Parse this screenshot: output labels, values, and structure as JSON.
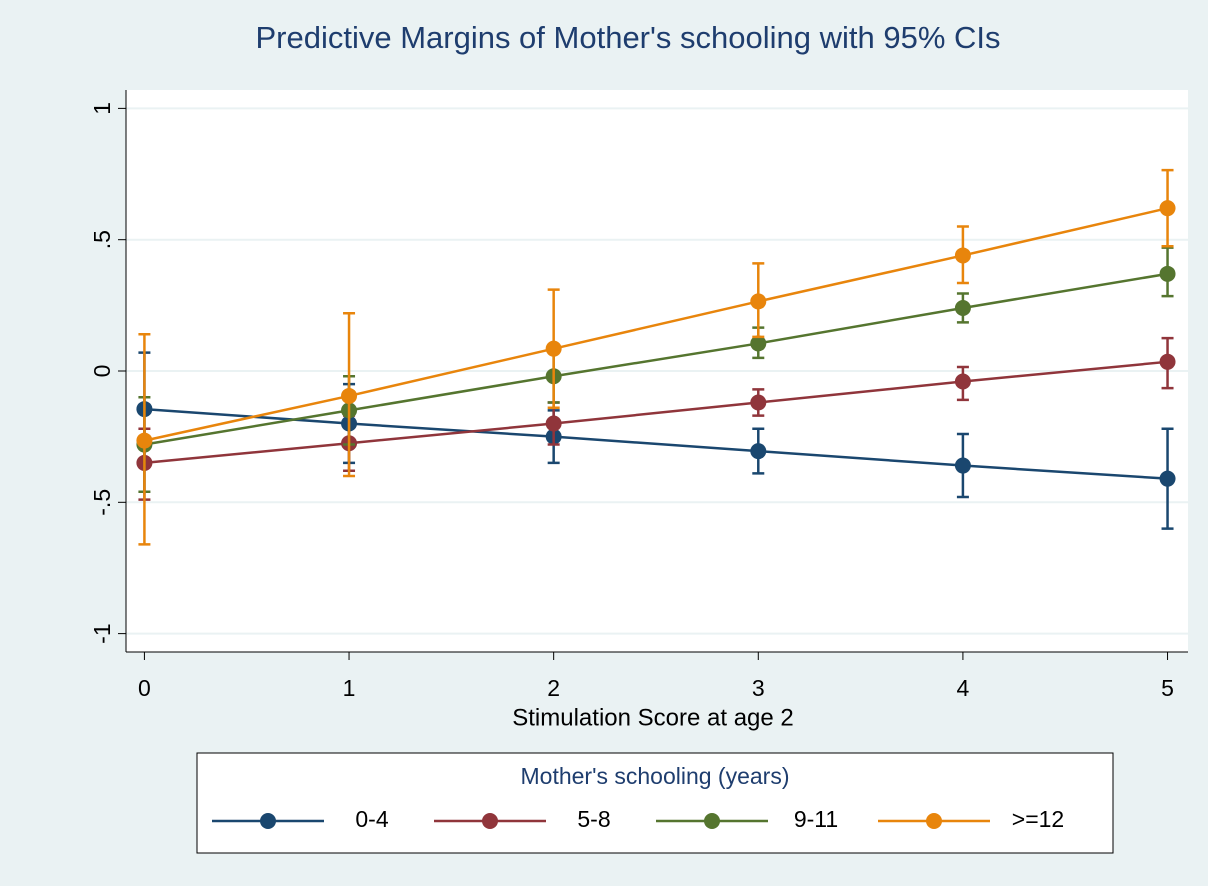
{
  "chart_data": {
    "type": "line",
    "title": "Predictive Margins of Mother's schooling with 95% CIs",
    "x_label": "Stimulation Score at age 2",
    "legend_title": "Mother's schooling (years)",
    "x": [
      0,
      1,
      2,
      3,
      4,
      5
    ],
    "xlim": [
      -0.09,
      5.1
    ],
    "xticks": [
      0,
      1,
      2,
      3,
      4,
      5
    ],
    "ylim": [
      -1.07,
      1.07
    ],
    "yticks": [
      {
        "value": -1,
        "label": "-1"
      },
      {
        "value": -0.5,
        "label": "-.5"
      },
      0,
      {
        "value": 0.5,
        "label": ".5"
      },
      1
    ],
    "grid": true,
    "series": [
      {
        "name": "0-4",
        "color": "#1a476f",
        "values": [
          -0.145,
          -0.2,
          -0.25,
          -0.305,
          -0.36,
          -0.41
        ],
        "lower": [
          -0.36,
          -0.35,
          -0.35,
          -0.39,
          -0.48,
          -0.6
        ],
        "upper": [
          0.07,
          -0.05,
          -0.15,
          -0.22,
          -0.24,
          -0.22
        ]
      },
      {
        "name": "5-8",
        "color": "#90353b",
        "values": [
          -0.35,
          -0.275,
          -0.2,
          -0.12,
          -0.04,
          0.035
        ],
        "lower": [
          -0.49,
          -0.38,
          -0.28,
          -0.17,
          -0.11,
          -0.065
        ],
        "upper": [
          -0.22,
          -0.17,
          -0.12,
          -0.07,
          0.015,
          0.125
        ]
      },
      {
        "name": "9-11",
        "color": "#55752f",
        "values": [
          -0.28,
          -0.15,
          -0.02,
          0.105,
          0.24,
          0.37
        ],
        "lower": [
          -0.46,
          -0.28,
          -0.12,
          0.05,
          0.185,
          0.285
        ],
        "upper": [
          -0.1,
          -0.02,
          0.08,
          0.165,
          0.295,
          0.47
        ]
      },
      {
        "name": ">=12",
        "color": "#e8850c",
        "values": [
          -0.265,
          -0.095,
          0.085,
          0.265,
          0.44,
          0.62
        ],
        "lower": [
          -0.66,
          -0.4,
          -0.14,
          0.13,
          0.335,
          0.475
        ],
        "upper": [
          0.14,
          0.22,
          0.31,
          0.41,
          0.55,
          0.765
        ]
      }
    ]
  }
}
